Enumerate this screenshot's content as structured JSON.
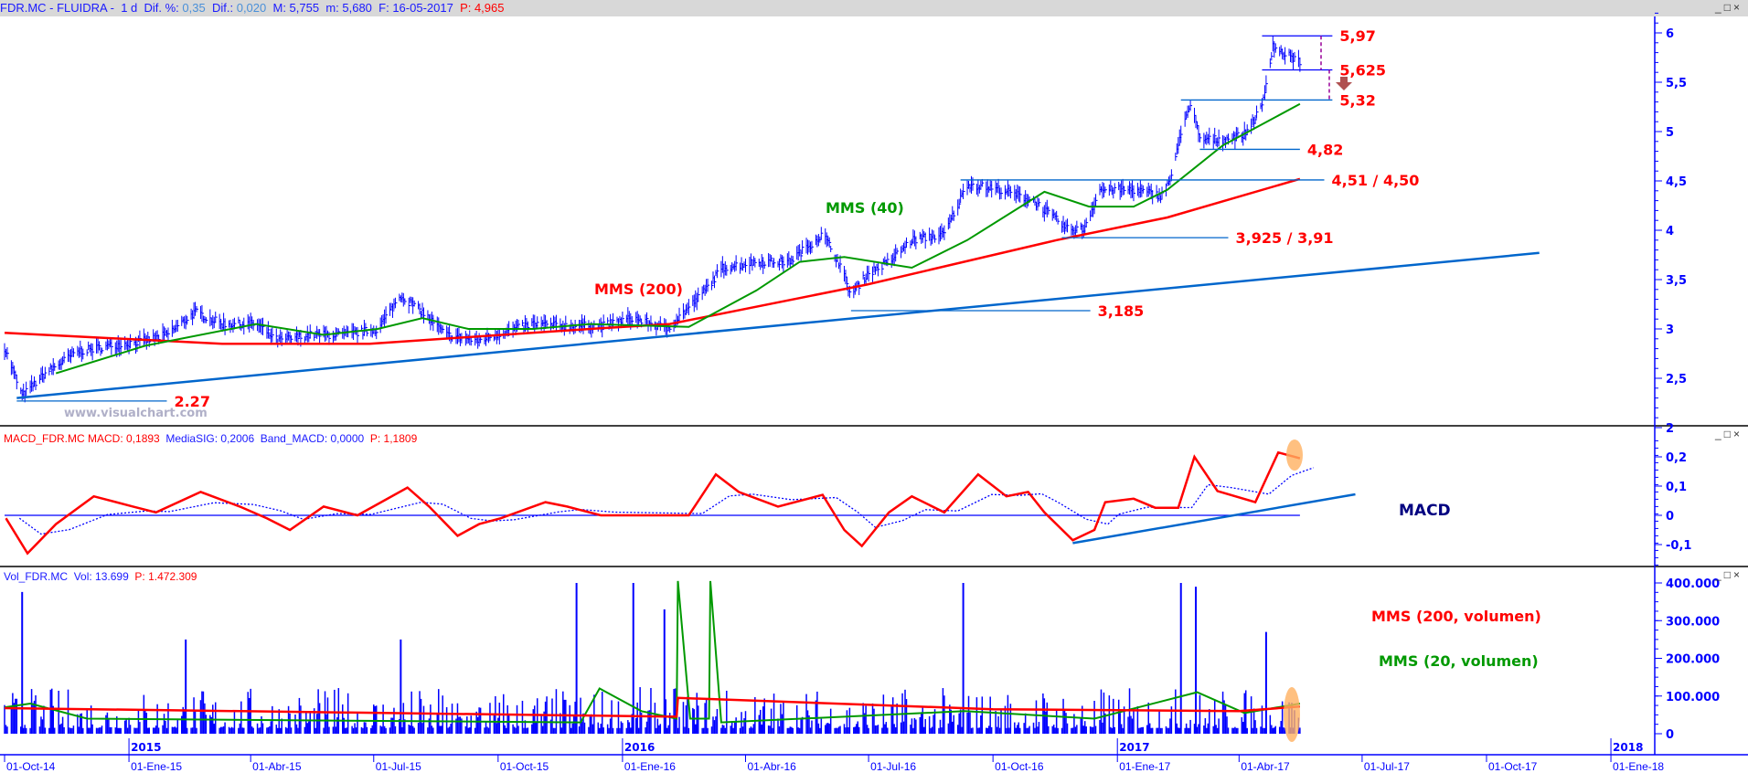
{
  "header": {
    "symbol": "FDR.MC - FLUIDRA -",
    "period": "1 d",
    "dif_pct_label": "Dif. %:",
    "dif_pct": "0,35",
    "dif_label": "Dif.:",
    "dif": "0,020",
    "max": "M: 5,755",
    "min": "m: 5,680",
    "date": "F: 16-05-2017",
    "p": "P: 4,965"
  },
  "window_controls": {
    "minimize": "_",
    "maximize": "□",
    "close": "×"
  },
  "watermark": "www.visualchart.com",
  "macd_header": {
    "name": "MACD_FDR.MC",
    "macd": "MACD: 0,1893",
    "signal": "MediaSIG: 0,2006",
    "band": "Band_MACD: 0,0000",
    "p": "P: 1,1809"
  },
  "vol_header": {
    "name": "Vol_FDR.MC",
    "vol": "Vol: 13.699",
    "p": "P: 1.472.309"
  },
  "colors": {
    "price": "#0000ff",
    "mms40": "#009900",
    "mms200": "#ff0000",
    "trend": "#0066cc",
    "highlight": "#ffb060",
    "annotation": "#ff0000",
    "macd_label": "#000080"
  },
  "chart_data": [
    {
      "type": "line",
      "panel": "price",
      "yaxis": {
        "ticks": [
          "6",
          "5,5",
          "5",
          "4,5",
          "4",
          "3,5",
          "3",
          "2,5",
          "2"
        ],
        "ylim": [
          2,
          6.2
        ]
      },
      "price": [
        [
          "2014-10-01",
          2.81
        ],
        [
          "2014-10-14",
          2.32
        ],
        [
          "2014-10-31",
          2.55
        ],
        [
          "2014-11-24",
          2.77
        ],
        [
          "2014-12-19",
          2.83
        ],
        [
          "2015-01-13",
          2.88
        ],
        [
          "2015-01-29",
          2.94
        ],
        [
          "2015-02-19",
          3.17
        ],
        [
          "2015-03-11",
          3.05
        ],
        [
          "2015-04-05",
          3.05
        ],
        [
          "2015-04-21",
          2.88
        ],
        [
          "2015-05-16",
          2.94
        ],
        [
          "2015-06-10",
          2.94
        ],
        [
          "2015-07-04",
          3.0
        ],
        [
          "2015-07-21",
          3.34
        ],
        [
          "2015-08-06",
          3.17
        ],
        [
          "2015-08-23",
          2.94
        ],
        [
          "2015-09-16",
          2.88
        ],
        [
          "2015-10-03",
          2.96
        ],
        [
          "2015-10-27",
          3.05
        ],
        [
          "2015-11-21",
          3.03
        ],
        [
          "2015-12-16",
          3.03
        ],
        [
          "2016-01-09",
          3.11
        ],
        [
          "2016-02-03",
          3.0
        ],
        [
          "2016-02-28",
          3.34
        ],
        [
          "2016-03-15",
          3.62
        ],
        [
          "2016-04-09",
          3.68
        ],
        [
          "2016-05-03",
          3.68
        ],
        [
          "2016-05-28",
          3.96
        ],
        [
          "2016-06-09",
          3.68
        ],
        [
          "2016-06-18",
          3.34
        ],
        [
          "2016-06-30",
          3.56
        ],
        [
          "2016-07-16",
          3.68
        ],
        [
          "2016-08-02",
          3.9
        ],
        [
          "2016-08-26",
          3.96
        ],
        [
          "2016-09-12",
          4.47
        ],
        [
          "2016-10-07",
          4.41
        ],
        [
          "2016-10-31",
          4.3
        ],
        [
          "2016-11-25",
          4.01
        ],
        [
          "2016-12-07",
          4.01
        ],
        [
          "2016-12-19",
          4.41
        ],
        [
          "2017-01-13",
          4.41
        ],
        [
          "2017-02-03",
          4.35
        ],
        [
          "2017-02-11",
          4.58
        ],
        [
          "2017-02-19",
          5.14
        ],
        [
          "2017-02-25",
          5.25
        ],
        [
          "2017-03-03",
          4.92
        ],
        [
          "2017-03-20",
          4.92
        ],
        [
          "2017-04-05",
          4.97
        ],
        [
          "2017-04-18",
          5.25
        ],
        [
          "2017-04-26",
          5.88
        ],
        [
          "2017-04-30",
          5.82
        ],
        [
          "2017-05-16",
          5.71
        ]
      ],
      "mms40": [
        [
          "2014-11-08",
          2.55
        ],
        [
          "2015-01-13",
          2.83
        ],
        [
          "2015-04-05",
          3.05
        ],
        [
          "2015-05-25",
          2.94
        ],
        [
          "2015-07-04",
          3.0
        ],
        [
          "2015-08-06",
          3.11
        ],
        [
          "2015-09-09",
          3.0
        ],
        [
          "2015-10-27",
          3.0
        ],
        [
          "2015-12-08",
          3.05
        ],
        [
          "2016-02-19",
          3.02
        ],
        [
          "2016-04-09",
          3.39
        ],
        [
          "2016-05-11",
          3.68
        ],
        [
          "2016-06-13",
          3.73
        ],
        [
          "2016-08-02",
          3.62
        ],
        [
          "2016-09-12",
          3.9
        ],
        [
          "2016-11-08",
          4.39
        ],
        [
          "2016-12-11",
          4.24
        ],
        [
          "2017-01-13",
          4.24
        ],
        [
          "2017-02-07",
          4.41
        ],
        [
          "2017-03-20",
          4.86
        ],
        [
          "2017-05-16",
          5.28
        ]
      ],
      "mms200": [
        [
          "2014-10-01",
          2.96
        ],
        [
          "2015-03-11",
          2.85
        ],
        [
          "2015-06-28",
          2.85
        ],
        [
          "2015-12-08",
          3.0
        ],
        [
          "2016-02-05",
          3.05
        ],
        [
          "2016-06-30",
          3.45
        ],
        [
          "2016-11-17",
          3.9
        ],
        [
          "2017-02-07",
          4.13
        ],
        [
          "2017-05-16",
          4.52
        ]
      ],
      "trendline": [
        [
          "2014-10-10",
          2.3
        ],
        [
          "2017-11-09",
          3.77
        ]
      ],
      "levels": [
        {
          "value": 5.97,
          "label": "5,97",
          "from": "2017-04-18",
          "to": "2017-06-09"
        },
        {
          "value": 5.625,
          "label": "5,625",
          "from": "2017-04-18",
          "to": "2017-06-09"
        },
        {
          "value": 5.32,
          "label": "5,32",
          "from": "2017-02-17",
          "to": "2017-06-09"
        },
        {
          "value": 4.82,
          "label": "4,82",
          "from": "2017-03-03",
          "to": "2017-05-16"
        },
        {
          "value": 4.51,
          "label": "4,51 / 4,50",
          "from": "2016-09-07",
          "to": "2017-06-03"
        },
        {
          "value": 3.925,
          "label": "3,925 / 3,91",
          "from": "2016-11-21",
          "to": "2017-03-24"
        },
        {
          "value": 3.185,
          "label": "3,185",
          "from": "2016-06-18",
          "to": "2016-12-12"
        },
        {
          "value": 2.27,
          "label": "2.27",
          "from": "2014-10-10",
          "to": "2015-01-29"
        }
      ],
      "annotations": {
        "mms200": "MMS (200)",
        "mms40": "MMS (40)"
      }
    },
    {
      "type": "line",
      "panel": "macd",
      "yaxis": {
        "ticks": [
          "0,2",
          "0,1",
          "0",
          "-0,1"
        ],
        "ylim": [
          -0.17,
          0.27
        ]
      },
      "macd": [
        [
          "2014-10-02",
          -0.01
        ],
        [
          "2014-10-18",
          -0.13
        ],
        [
          "2014-11-08",
          -0.03
        ],
        [
          "2014-12-06",
          0.065
        ],
        [
          "2015-01-04",
          0.03
        ],
        [
          "2015-01-21",
          0.01
        ],
        [
          "2015-02-23",
          0.08
        ],
        [
          "2015-03-24",
          0.03
        ],
        [
          "2015-04-13",
          -0.01
        ],
        [
          "2015-04-30",
          -0.05
        ],
        [
          "2015-05-25",
          0.03
        ],
        [
          "2015-06-19",
          0.0
        ],
        [
          "2015-07-26",
          0.095
        ],
        [
          "2015-08-11",
          0.03
        ],
        [
          "2015-09-01",
          -0.07
        ],
        [
          "2015-09-17",
          -0.03
        ],
        [
          "2015-10-03",
          -0.01
        ],
        [
          "2015-11-05",
          0.045
        ],
        [
          "2015-11-21",
          0.03
        ],
        [
          "2015-12-16",
          0.0
        ],
        [
          "2016-02-19",
          0.0
        ],
        [
          "2016-03-10",
          0.14
        ],
        [
          "2016-03-27",
          0.08
        ],
        [
          "2016-04-25",
          0.03
        ],
        [
          "2016-05-28",
          0.07
        ],
        [
          "2016-06-13",
          -0.05
        ],
        [
          "2016-06-26",
          -0.105
        ],
        [
          "2016-07-16",
          0.01
        ],
        [
          "2016-08-02",
          0.065
        ],
        [
          "2016-08-26",
          0.01
        ],
        [
          "2016-09-20",
          0.14
        ],
        [
          "2016-10-11",
          0.065
        ],
        [
          "2016-10-27",
          0.08
        ],
        [
          "2016-11-08",
          0.01
        ],
        [
          "2016-11-29",
          -0.085
        ],
        [
          "2016-12-15",
          -0.05
        ],
        [
          "2016-12-23",
          0.045
        ],
        [
          "2017-01-13",
          0.057
        ],
        [
          "2017-01-29",
          0.026
        ],
        [
          "2017-02-15",
          0.026
        ],
        [
          "2017-02-27",
          0.2
        ],
        [
          "2017-03-16",
          0.083
        ],
        [
          "2017-04-13",
          0.045
        ],
        [
          "2017-04-30",
          0.215
        ],
        [
          "2017-05-16",
          0.195
        ]
      ],
      "zero_line": [
        [
          "2014-10-01",
          0
        ],
        [
          "2017-05-16",
          0
        ]
      ],
      "trendline": [
        [
          "2016-11-29",
          -0.095
        ],
        [
          "2017-06-26",
          0.072
        ]
      ],
      "label": "MACD"
    },
    {
      "type": "bar",
      "panel": "volume",
      "yaxis": {
        "ticks": [
          "400.000",
          "300.000",
          "200.000",
          "100.000",
          "0"
        ],
        "ylim": [
          0,
          420000
        ]
      },
      "spikes": [
        [
          "2014-10-14",
          376000
        ],
        [
          "2015-02-12",
          250000
        ],
        [
          "2015-07-21",
          250000
        ],
        [
          "2015-11-28",
          400000
        ],
        [
          "2016-01-09",
          400000
        ],
        [
          "2016-02-01",
          330000
        ],
        [
          "2016-09-09",
          400000
        ],
        [
          "2017-02-17",
          400000
        ],
        [
          "2017-02-28",
          390000
        ],
        [
          "2017-04-21",
          270000
        ]
      ],
      "mms200_vol": [
        [
          "2014-10-01",
          68000
        ],
        [
          "2016-02-10",
          45000
        ],
        [
          "2016-02-11",
          95000
        ],
        [
          "2016-10-01",
          65000
        ],
        [
          "2017-04-01",
          60000
        ],
        [
          "2017-05-16",
          72000
        ]
      ],
      "mms20_vol": [
        [
          "2014-10-01",
          70000
        ],
        [
          "2014-10-20",
          80000
        ],
        [
          "2014-12-01",
          40000
        ],
        [
          "2015-06-01",
          35000
        ],
        [
          "2015-12-01",
          30000
        ],
        [
          "2015-12-15",
          120000
        ],
        [
          "2016-01-15",
          60000
        ],
        [
          "2016-02-10",
          40000
        ],
        [
          "2016-02-11",
          420000
        ],
        [
          "2016-02-20",
          40000
        ],
        [
          "2016-03-05",
          40000
        ],
        [
          "2016-03-06",
          420000
        ],
        [
          "2016-03-14",
          30000
        ],
        [
          "2016-09-10",
          60000
        ],
        [
          "2016-12-15",
          40000
        ],
        [
          "2017-03-01",
          110000
        ],
        [
          "2017-04-05",
          55000
        ],
        [
          "2017-05-16",
          80000
        ]
      ],
      "annotations": {
        "mms200": "MMS (200, volumen)",
        "mms20": "MMS (20, volumen)"
      }
    }
  ],
  "xaxis": {
    "years": [
      [
        "2015",
        "2015-01-01"
      ],
      [
        "2016",
        "2016-01-01"
      ],
      [
        "2017",
        "2017-01-01"
      ],
      [
        "2018",
        "2018-01-01"
      ]
    ],
    "dates": [
      [
        "01-Oct-14",
        "2014-10-01"
      ],
      [
        "01-Ene-15",
        "2015-01-01"
      ],
      [
        "01-Abr-15",
        "2015-04-01"
      ],
      [
        "01-Jul-15",
        "2015-07-01"
      ],
      [
        "01-Oct-15",
        "2015-10-01"
      ],
      [
        "01-Ene-16",
        "2016-01-01"
      ],
      [
        "01-Abr-16",
        "2016-04-01"
      ],
      [
        "01-Jul-16",
        "2016-07-01"
      ],
      [
        "01-Oct-16",
        "2016-10-01"
      ],
      [
        "01-Ene-17",
        "2017-01-01"
      ],
      [
        "01-Abr-17",
        "2017-04-01"
      ],
      [
        "01-Jul-17",
        "2017-07-01"
      ],
      [
        "01-Oct-17",
        "2017-10-01"
      ],
      [
        "01-Ene-18",
        "2018-01-01"
      ]
    ]
  }
}
